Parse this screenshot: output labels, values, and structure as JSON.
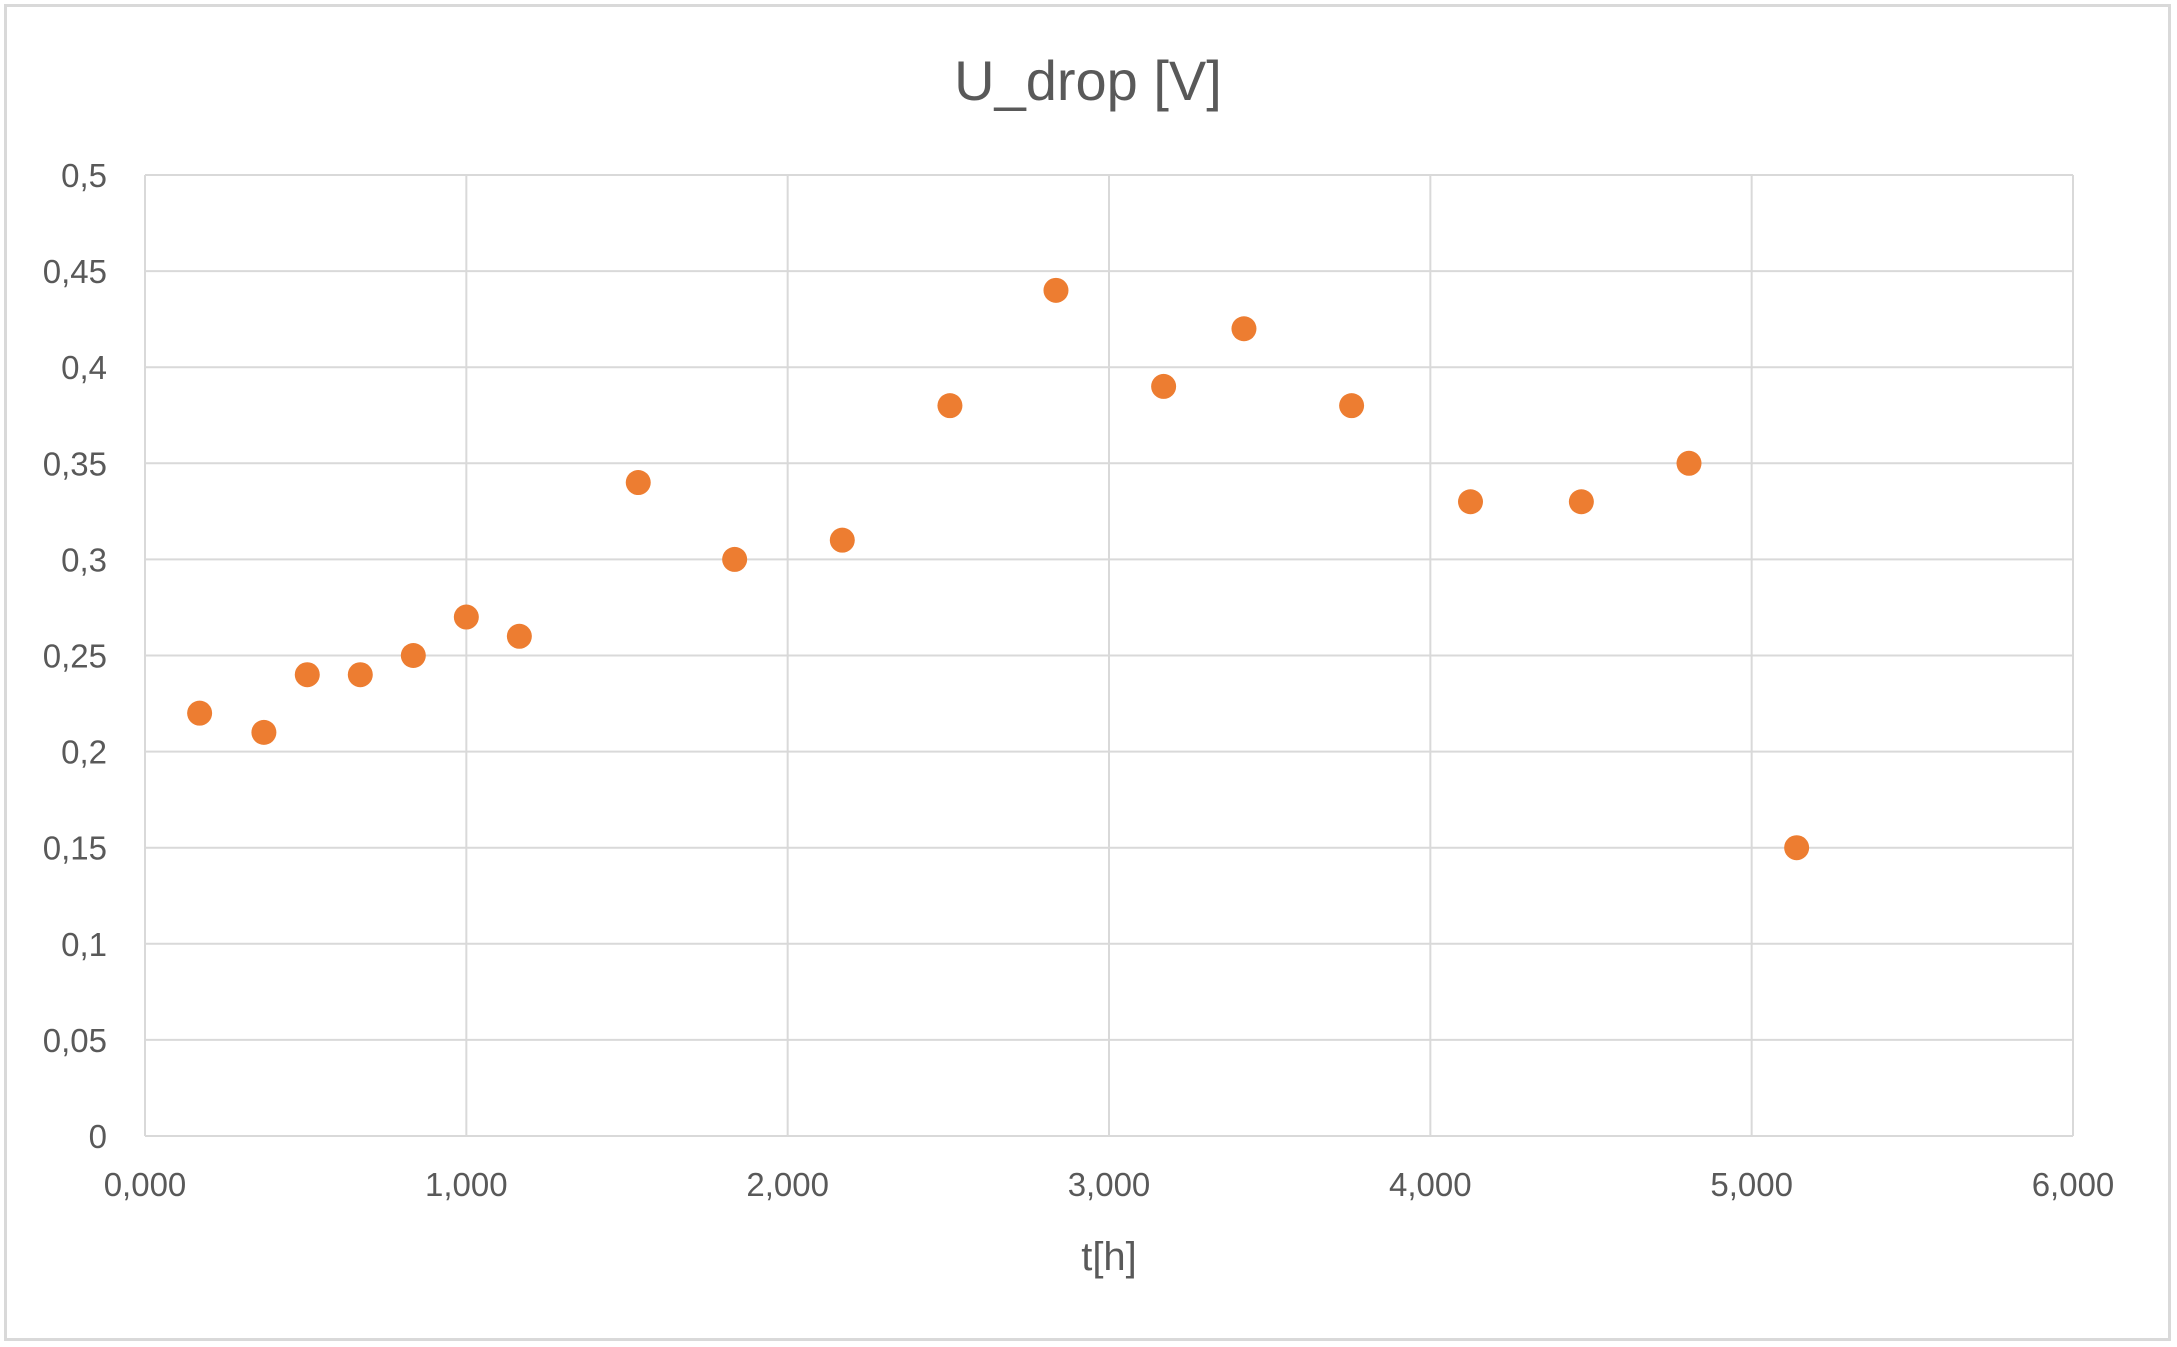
{
  "chart_data": {
    "type": "scatter",
    "title": "U_drop [V]",
    "xlabel": "t[h]",
    "ylabel": "",
    "xlim": [
      0,
      6000
    ],
    "ylim": [
      0,
      0.5
    ],
    "x_ticks": [
      "0,000",
      "1,000",
      "2,000",
      "3,000",
      "4,000",
      "5,000",
      "6,000"
    ],
    "y_ticks": [
      "0",
      "0,05",
      "0,1",
      "0,15",
      "0,2",
      "0,25",
      "0,3",
      "0,35",
      "0,4",
      "0,45",
      "0,5"
    ],
    "grid": true,
    "legend": "none",
    "marker_color": "#ED7D31",
    "grid_color": "#d9d9d9",
    "text_color": "#595959",
    "series": [
      {
        "points": [
          {
            "x": 170,
            "y": 0.22
          },
          {
            "x": 370,
            "y": 0.21
          },
          {
            "x": 505,
            "y": 0.24
          },
          {
            "x": 670,
            "y": 0.24
          },
          {
            "x": 835,
            "y": 0.25
          },
          {
            "x": 1000,
            "y": 0.27
          },
          {
            "x": 1165,
            "y": 0.26
          },
          {
            "x": 1535,
            "y": 0.34
          },
          {
            "x": 1835,
            "y": 0.3
          },
          {
            "x": 2170,
            "y": 0.31
          },
          {
            "x": 2505,
            "y": 0.38
          },
          {
            "x": 2835,
            "y": 0.44
          },
          {
            "x": 3170,
            "y": 0.39
          },
          {
            "x": 3420,
            "y": 0.42
          },
          {
            "x": 3755,
            "y": 0.38
          },
          {
            "x": 4125,
            "y": 0.33
          },
          {
            "x": 4470,
            "y": 0.33
          },
          {
            "x": 4805,
            "y": 0.35
          },
          {
            "x": 5140,
            "y": 0.15
          }
        ]
      }
    ]
  }
}
